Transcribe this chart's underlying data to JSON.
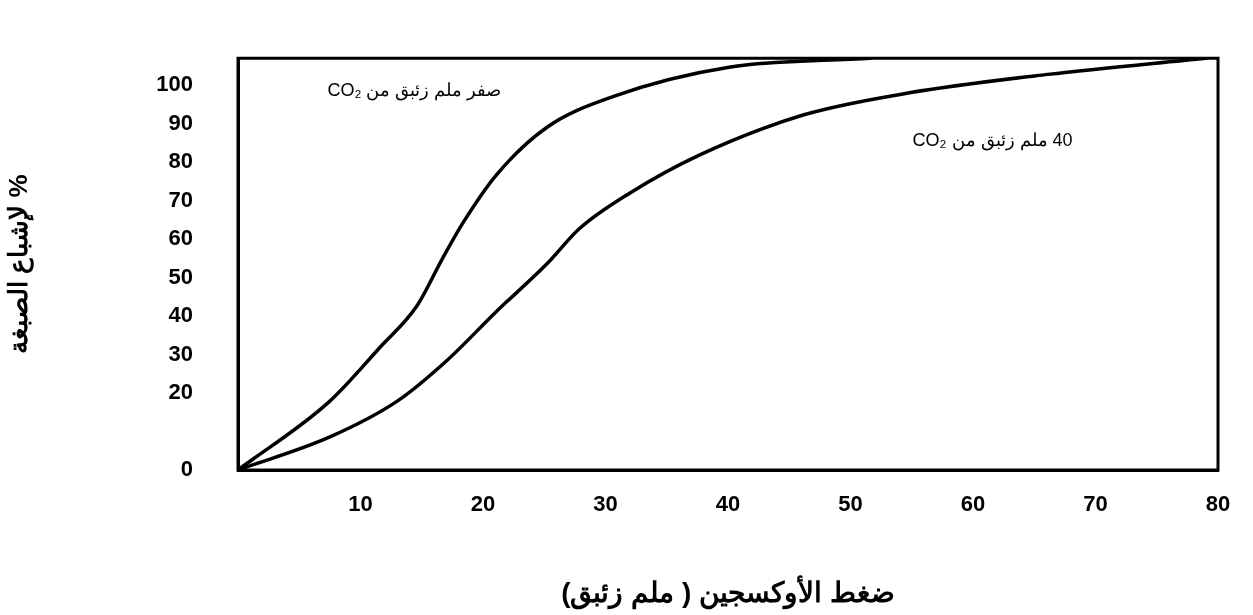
{
  "chart_data": {
    "type": "line",
    "xlabel": "ضغط الأوكسجين ( ملم زئبق)",
    "ylabel": "% لإشباع الصبغة",
    "xlim": [
      0,
      80
    ],
    "xticks": [
      10,
      20,
      30,
      40,
      50,
      60,
      70,
      80
    ],
    "ylim": [
      0,
      107
    ],
    "yticks": [
      0,
      20,
      30,
      40,
      50,
      60,
      70,
      80,
      90,
      100
    ],
    "grid": false,
    "legend": false,
    "marker": "none",
    "line_style": "solid",
    "series": [
      {
        "color": "#000000",
        "x": [
          0,
          7.5,
          11.6,
          14.6,
          16.7,
          18.4,
          21.1,
          25.2,
          30.6,
          40.2,
          51.6
        ],
        "values": [
          0,
          17.9,
          31.9,
          42.6,
          55,
          64.4,
          76.7,
          89,
          97,
          104.7,
          107
        ]
      },
      {
        "color": "#000000",
        "x": [
          0,
          7.5,
          13,
          17.1,
          21.1,
          25.2,
          27.9,
          32,
          37.7,
          46.2,
          54.8,
          66.1,
          79
        ],
        "values": [
          0,
          8.6,
          17.9,
          28.6,
          41.2,
          53.5,
          62.8,
          72,
          81.9,
          92.3,
          98,
          102.8,
          107
        ]
      }
    ],
    "annotations": [
      "صفر ملم زئبق من CO₂",
      "40 ملم زئبق من CO₂"
    ]
  }
}
